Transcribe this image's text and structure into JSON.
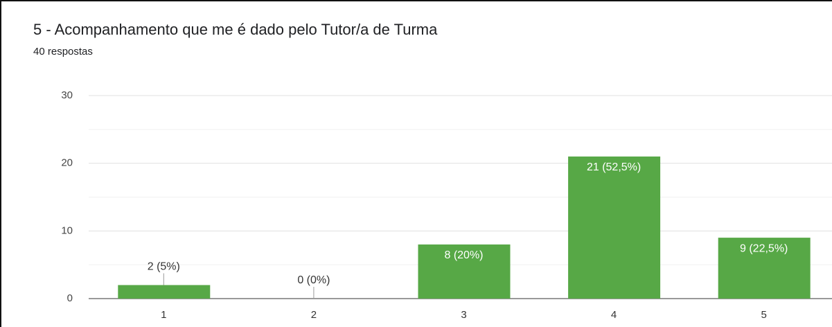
{
  "chart_data": {
    "type": "bar",
    "title": "5 - Acompanhamento que me é dado pelo Tutor/a de Turma",
    "subtitle": "40 respostas",
    "categories": [
      "1",
      "2",
      "3",
      "4",
      "5"
    ],
    "values": [
      2,
      0,
      8,
      21,
      9
    ],
    "value_labels": [
      "2 (5%)",
      "0 (0%)",
      "8 (20%)",
      "21 (52,5%)",
      "9 (22,5%)"
    ],
    "color": "#57a846",
    "ylim": [
      0,
      30
    ],
    "yticks": [
      0,
      10,
      20,
      30
    ],
    "grid": true
  }
}
